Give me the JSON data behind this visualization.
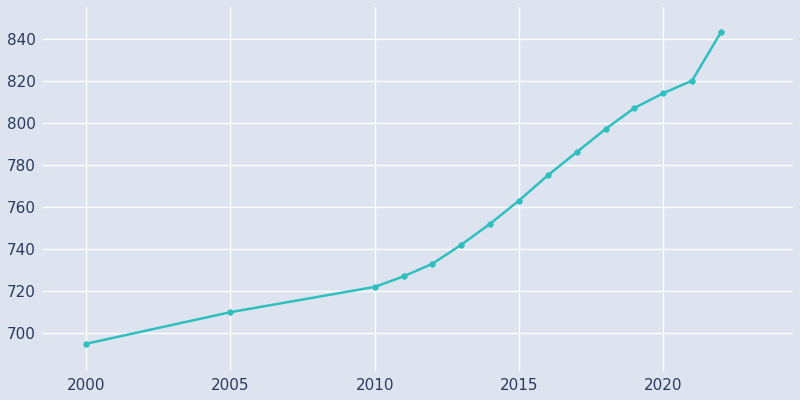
{
  "years": [
    2000,
    2005,
    2010,
    2011,
    2012,
    2013,
    2014,
    2015,
    2016,
    2017,
    2018,
    2019,
    2020,
    2021,
    2022
  ],
  "population": [
    695,
    710,
    722,
    727,
    733,
    742,
    752,
    763,
    775,
    786,
    797,
    807,
    814,
    820,
    843
  ],
  "line_color": "#30bfbf",
  "marker_color": "#30bfbf",
  "background_color": "#dde4ef",
  "grid_color": "#ffffff",
  "text_color": "#2a3a5c",
  "xlabel": "",
  "ylabel": "",
  "xlim": [
    1998.5,
    2024.5
  ],
  "ylim": [
    682,
    855
  ],
  "xticks": [
    2000,
    2005,
    2010,
    2015,
    2020
  ],
  "yticks": [
    700,
    720,
    740,
    760,
    780,
    800,
    820,
    840
  ],
  "line_width": 1.8,
  "marker_size": 4,
  "marker_style": "o",
  "tick_color": "#2a3a5c",
  "tick_fontsize": 11,
  "figsize": [
    8.0,
    4.0
  ],
  "dpi": 100
}
